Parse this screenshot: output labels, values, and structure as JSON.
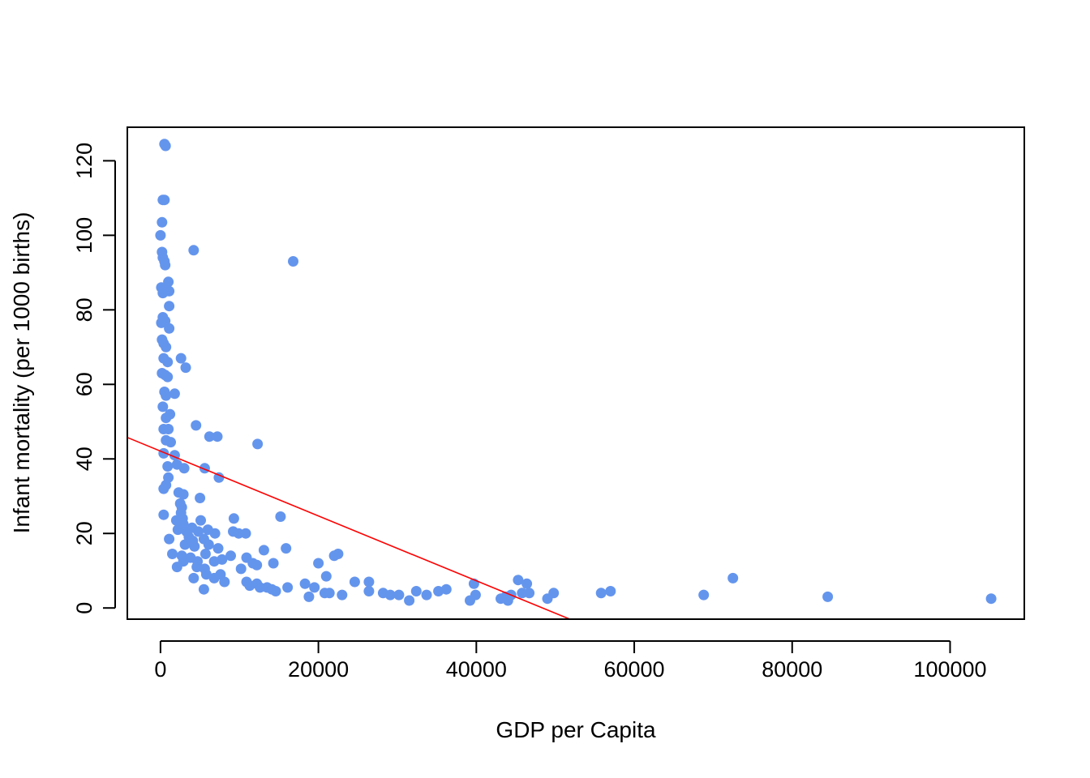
{
  "chart_data": {
    "type": "scatter",
    "title": "",
    "xlabel": "GDP per Capita",
    "ylabel": "Infant mortality (per 1000 births)",
    "xlim": [
      -4200,
      109400
    ],
    "ylim": [
      -3,
      129
    ],
    "x_ticks": [
      0,
      20000,
      40000,
      60000,
      80000,
      100000
    ],
    "y_ticks": [
      0,
      20,
      40,
      60,
      80,
      100,
      120
    ],
    "grid": false,
    "legend": "none",
    "point_color": "#6495ED",
    "line_color": "#FF0000",
    "regression_line": {
      "intercept": 42.1,
      "slope": -0.00087
    },
    "points": [
      [
        500,
        124.5
      ],
      [
        650,
        124
      ],
      [
        300,
        109.5
      ],
      [
        500,
        109.5
      ],
      [
        200,
        103.5
      ],
      [
        0,
        100
      ],
      [
        200,
        95.5
      ],
      [
        300,
        94
      ],
      [
        500,
        93
      ],
      [
        600,
        92
      ],
      [
        4200,
        96
      ],
      [
        16800,
        93
      ],
      [
        1000,
        87.5
      ],
      [
        100,
        86
      ],
      [
        400,
        85.5
      ],
      [
        700,
        85
      ],
      [
        1100,
        85
      ],
      [
        300,
        84.5
      ],
      [
        1100,
        81
      ],
      [
        300,
        78
      ],
      [
        600,
        77
      ],
      [
        100,
        76.5
      ],
      [
        1100,
        75
      ],
      [
        200,
        72
      ],
      [
        400,
        71
      ],
      [
        700,
        70
      ],
      [
        2600,
        67
      ],
      [
        400,
        67
      ],
      [
        900,
        66
      ],
      [
        200,
        63
      ],
      [
        600,
        62.5
      ],
      [
        900,
        62
      ],
      [
        3200,
        64.5
      ],
      [
        500,
        58
      ],
      [
        700,
        57
      ],
      [
        1800,
        57.5
      ],
      [
        300,
        54
      ],
      [
        700,
        51
      ],
      [
        1200,
        52
      ],
      [
        400,
        48
      ],
      [
        1000,
        48
      ],
      [
        4500,
        49
      ],
      [
        6200,
        46
      ],
      [
        7200,
        46
      ],
      [
        12300,
        44
      ],
      [
        700,
        45
      ],
      [
        1300,
        44.5
      ],
      [
        400,
        41.5
      ],
      [
        1800,
        41
      ],
      [
        900,
        38
      ],
      [
        2100,
        38.5
      ],
      [
        3000,
        37.5
      ],
      [
        5600,
        37.5
      ],
      [
        7400,
        35
      ],
      [
        1000,
        35
      ],
      [
        700,
        33
      ],
      [
        400,
        32
      ],
      [
        2300,
        31
      ],
      [
        2900,
        30.5
      ],
      [
        5000,
        29.5
      ],
      [
        2500,
        28
      ],
      [
        2700,
        27
      ],
      [
        2600,
        25.5
      ],
      [
        2800,
        24
      ],
      [
        400,
        25
      ],
      [
        15200,
        24.5
      ],
      [
        9300,
        24
      ],
      [
        2000,
        23.5
      ],
      [
        5100,
        23.5
      ],
      [
        2900,
        22.5
      ],
      [
        4000,
        21.5
      ],
      [
        6000,
        21
      ],
      [
        2200,
        21
      ],
      [
        3300,
        20.5
      ],
      [
        4800,
        20.5
      ],
      [
        6900,
        20
      ],
      [
        9200,
        20.5
      ],
      [
        10800,
        20
      ],
      [
        1100,
        18.5
      ],
      [
        3600,
        19
      ],
      [
        4100,
        18
      ],
      [
        5500,
        18.5
      ],
      [
        9900,
        20
      ],
      [
        3100,
        17
      ],
      [
        4300,
        16.5
      ],
      [
        7300,
        16
      ],
      [
        15900,
        16
      ],
      [
        6100,
        17
      ],
      [
        1500,
        14.5
      ],
      [
        2700,
        14
      ],
      [
        3800,
        13.5
      ],
      [
        5700,
        14.5
      ],
      [
        8900,
        14
      ],
      [
        10900,
        13.5
      ],
      [
        13100,
        15.5
      ],
      [
        22500,
        14.5
      ],
      [
        22000,
        14
      ],
      [
        2900,
        12.5
      ],
      [
        4700,
        12.5
      ],
      [
        6800,
        12.5
      ],
      [
        7800,
        13
      ],
      [
        11700,
        12
      ],
      [
        12200,
        11.5
      ],
      [
        14300,
        12
      ],
      [
        20000,
        12
      ],
      [
        2100,
        11
      ],
      [
        4600,
        11
      ],
      [
        5600,
        10.5
      ],
      [
        10200,
        10.5
      ],
      [
        4200,
        8
      ],
      [
        5800,
        9
      ],
      [
        6800,
        8
      ],
      [
        7600,
        9
      ],
      [
        8100,
        7
      ],
      [
        10900,
        7
      ],
      [
        11300,
        6
      ],
      [
        12200,
        6.5
      ],
      [
        12600,
        5.5
      ],
      [
        13500,
        5.5
      ],
      [
        14100,
        5
      ],
      [
        14600,
        4.5
      ],
      [
        16100,
        5.5
      ],
      [
        5500,
        5
      ],
      [
        18300,
        6.5
      ],
      [
        19500,
        5.5
      ],
      [
        21000,
        8.5
      ],
      [
        20800,
        4
      ],
      [
        21400,
        4
      ],
      [
        23000,
        3.5
      ],
      [
        24600,
        7
      ],
      [
        26400,
        7
      ],
      [
        26400,
        4.5
      ],
      [
        28200,
        4
      ],
      [
        29100,
        3.5
      ],
      [
        30200,
        3.5
      ],
      [
        31500,
        2
      ],
      [
        32400,
        4.5
      ],
      [
        33700,
        3.5
      ],
      [
        35200,
        4.5
      ],
      [
        36200,
        5
      ],
      [
        39200,
        2
      ],
      [
        39700,
        6.5
      ],
      [
        39900,
        3.5
      ],
      [
        43100,
        2.5
      ],
      [
        44000,
        2
      ],
      [
        44400,
        3.5
      ],
      [
        45300,
        7.5
      ],
      [
        45800,
        4
      ],
      [
        46400,
        6.5
      ],
      [
        46700,
        4
      ],
      [
        49000,
        2.5
      ],
      [
        49800,
        4
      ],
      [
        55800,
        4
      ],
      [
        57000,
        4.5
      ],
      [
        68800,
        3.5
      ],
      [
        72500,
        8
      ],
      [
        84500,
        3
      ],
      [
        105200,
        2.5
      ],
      [
        18800,
        3
      ],
      [
        43700,
        3
      ]
    ]
  }
}
